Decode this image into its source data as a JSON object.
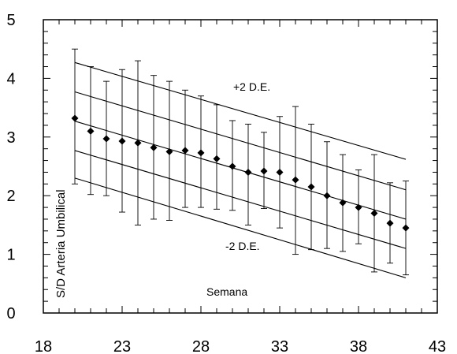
{
  "chart_data": {
    "type": "scatter",
    "title": "",
    "xlabel": "Semana",
    "ylabel": "S/D Arteria Umbilical",
    "xlim": [
      18,
      43
    ],
    "ylim": [
      0,
      5
    ],
    "xticks": [
      "18",
      "23",
      "28",
      "33",
      "38",
      "43"
    ],
    "yticks": [
      "0",
      "1",
      "2",
      "3",
      "4",
      "5"
    ],
    "grid": false,
    "annotations": [
      "+2 D.E.",
      "-2 D.E."
    ],
    "points": [
      {
        "x": 20,
        "y": 3.32,
        "low": 2.2,
        "high": 4.5
      },
      {
        "x": 21,
        "y": 3.1,
        "low": 2.02,
        "high": 4.2
      },
      {
        "x": 22,
        "y": 2.97,
        "low": 2.0,
        "high": 3.95
      },
      {
        "x": 23,
        "y": 2.93,
        "low": 1.72,
        "high": 4.15
      },
      {
        "x": 24,
        "y": 2.9,
        "low": 1.5,
        "high": 4.3
      },
      {
        "x": 25,
        "y": 2.82,
        "low": 1.6,
        "high": 4.05
      },
      {
        "x": 26,
        "y": 2.75,
        "low": 1.58,
        "high": 3.95
      },
      {
        "x": 27,
        "y": 2.77,
        "low": 1.8,
        "high": 3.8
      },
      {
        "x": 28,
        "y": 2.73,
        "low": 1.8,
        "high": 3.7
      },
      {
        "x": 29,
        "y": 2.63,
        "low": 1.77,
        "high": 3.55
      },
      {
        "x": 30,
        "y": 2.5,
        "low": 1.75,
        "high": 3.28
      },
      {
        "x": 31,
        "y": 2.4,
        "low": 1.5,
        "high": 3.22
      },
      {
        "x": 32,
        "y": 2.42,
        "low": 1.78,
        "high": 3.08
      },
      {
        "x": 33,
        "y": 2.4,
        "low": 1.45,
        "high": 3.35
      },
      {
        "x": 34,
        "y": 2.27,
        "low": 1.0,
        "high": 3.52
      },
      {
        "x": 35,
        "y": 2.15,
        "low": 1.08,
        "high": 3.22
      },
      {
        "x": 36,
        "y": 2.0,
        "low": 1.1,
        "high": 2.92
      },
      {
        "x": 37,
        "y": 1.88,
        "low": 1.05,
        "high": 2.7
      },
      {
        "x": 38,
        "y": 1.8,
        "low": 1.18,
        "high": 2.44
      },
      {
        "x": 39,
        "y": 1.7,
        "low": 0.7,
        "high": 2.7
      },
      {
        "x": 40,
        "y": 1.53,
        "low": 0.85,
        "high": 2.22
      },
      {
        "x": 41,
        "y": 1.45,
        "low": 0.65,
        "high": 2.25
      }
    ],
    "reference_lines": [
      {
        "x": [
          20,
          41
        ],
        "y": [
          4.27,
          2.62
        ]
      },
      {
        "x": [
          20,
          41
        ],
        "y": [
          3.77,
          2.1
        ]
      },
      {
        "x": [
          20,
          41
        ],
        "y": [
          3.27,
          1.6
        ]
      },
      {
        "x": [
          20,
          41
        ],
        "y": [
          2.77,
          1.1
        ]
      },
      {
        "x": [
          20,
          41
        ],
        "y": [
          2.3,
          0.6
        ]
      }
    ]
  }
}
